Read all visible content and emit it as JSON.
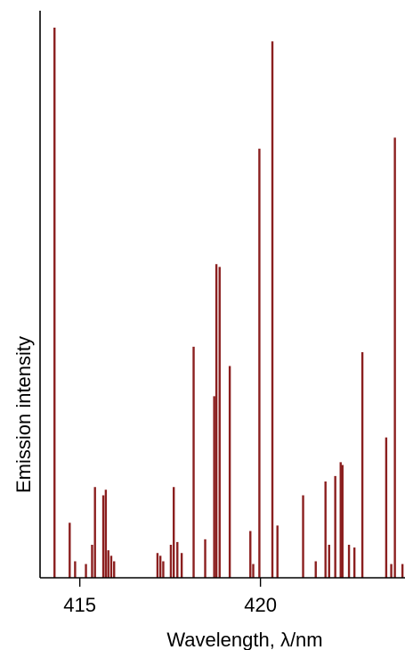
{
  "chart_data": {
    "type": "bar",
    "xlabel": "Wavelength, λ/nm",
    "ylabel": "Emission intensity",
    "xlim": [
      413.9,
      424.0
    ],
    "ylim": [
      0,
      100
    ],
    "x_ticks": [
      415,
      420
    ],
    "x_tick_labels": [
      "415",
      "420"
    ],
    "grid": false,
    "legend": "none",
    "bar_color": "#8b1f1f",
    "series": [
      {
        "x": [
          414.3,
          414.72,
          414.87,
          415.17,
          415.34,
          415.42,
          415.65,
          415.72,
          415.79,
          415.87,
          415.95,
          417.15,
          417.23,
          417.31,
          417.52,
          417.6,
          417.7,
          417.82,
          418.15,
          418.47,
          418.72,
          418.78,
          418.87,
          419.15,
          419.72,
          419.8,
          419.97,
          420.33,
          420.47,
          421.18,
          421.53,
          421.8,
          421.9,
          422.07,
          422.22,
          422.27,
          422.45,
          422.6,
          422.82,
          423.48,
          423.62,
          423.72,
          423.93
        ],
        "y": [
          100,
          10,
          3,
          2.5,
          6,
          16.5,
          15,
          16,
          5,
          4,
          3,
          4.5,
          4,
          3,
          6,
          16.5,
          6.5,
          4.5,
          42,
          7,
          33,
          57,
          56.5,
          38.5,
          8.5,
          2.5,
          78,
          97.5,
          9.5,
          15,
          3,
          17.5,
          6,
          18.5,
          21,
          20.5,
          6,
          5.5,
          41,
          25.5,
          2.5,
          80,
          2.5
        ]
      }
    ]
  }
}
